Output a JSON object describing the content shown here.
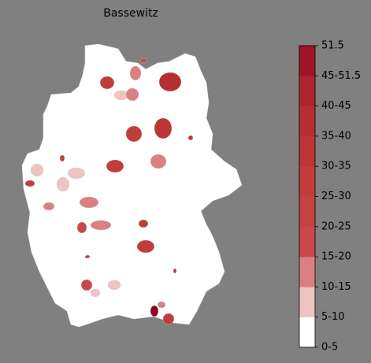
{
  "title": "Bassewitz",
  "colorbar": {
    "bounds": [
      0,
      5,
      10,
      15,
      20,
      25,
      30,
      35,
      40,
      45,
      51.5
    ],
    "colors": [
      "#ffffff",
      "#efc3c3",
      "#db8080",
      "#c94848",
      "#c64242",
      "#c23c3c",
      "#bd3536",
      "#b72e32",
      "#ae252e",
      "#9e1526"
    ],
    "ticks": [
      {
        "value": 0,
        "label": "0-5"
      },
      {
        "value": 5,
        "label": "5-10"
      },
      {
        "value": 10,
        "label": "10-15"
      },
      {
        "value": 15,
        "label": "15-20"
      },
      {
        "value": 20,
        "label": "20-25"
      },
      {
        "value": 25,
        "label": "25-30"
      },
      {
        "value": 30,
        "label": "30-35"
      },
      {
        "value": 35,
        "label": "35-40"
      },
      {
        "value": 40,
        "label": "40-45"
      },
      {
        "value": 45,
        "label": "45-51.5"
      },
      51.5
    ]
  }
}
